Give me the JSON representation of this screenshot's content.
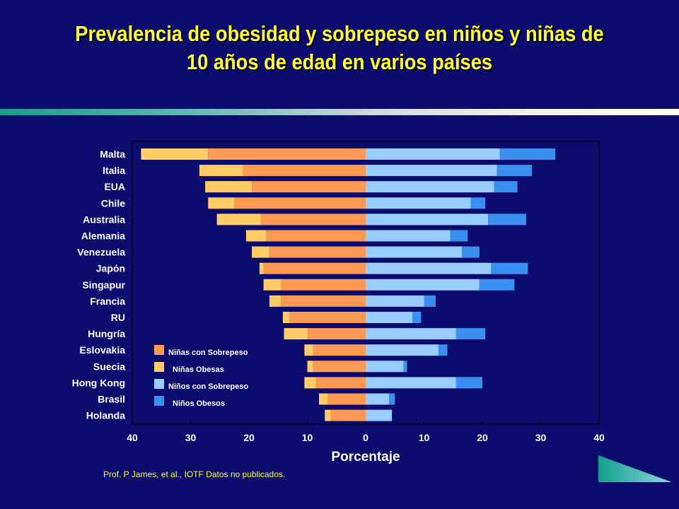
{
  "title_line1": "Prevalencia de obesidad y sobrepeso en niños y niñas de",
  "title_line2": "10 años de edad en varios países",
  "source": "Prof. P James, et al., IOTF Datos no publicados.",
  "colors": {
    "background": "#0c0c6e",
    "girls_overweight": "#ff9a55",
    "girls_obese": "#ffcc66",
    "boys_overweight": "#99ccff",
    "boys_obese": "#3b8ff0",
    "title": "#ffff33"
  },
  "chart_data": {
    "type": "bar",
    "orientation": "horizontal-diverging",
    "xlabel": "Porcentaje",
    "xlim": [
      -40,
      40
    ],
    "xticks": [
      "40",
      "30",
      "20",
      "10",
      "0",
      "10",
      "20",
      "30",
      "40"
    ],
    "categories": [
      "Malta",
      "Italia",
      "EUA",
      "Chile",
      "Australia",
      "Alemania",
      "Venezuela",
      "Japón",
      "Singapur",
      "Francia",
      "RU",
      "Hungría",
      "Eslovakia",
      "Suecia",
      "Hong Kong",
      "Brasil",
      "Holanda"
    ],
    "series": [
      {
        "name": "Niñas con Sobrepeso",
        "side": "left",
        "values": [
          27,
          21,
          19.5,
          22.5,
          18,
          17,
          16.5,
          17.5,
          14.5,
          14.5,
          13,
          10,
          9,
          9,
          8.5,
          6.5,
          6
        ]
      },
      {
        "name": "Niñas Obesas",
        "side": "left",
        "values": [
          11.5,
          7.5,
          8,
          4.5,
          7.5,
          3.5,
          3,
          0.7,
          3,
          2,
          1.2,
          4,
          1.5,
          1,
          2,
          1.5,
          1
        ]
      },
      {
        "name": "Niños con Sobrepeso",
        "side": "right",
        "values": [
          23,
          22.5,
          22,
          18,
          21,
          14.5,
          16.5,
          21.5,
          19.5,
          10,
          8,
          15.5,
          12.5,
          6.5,
          15.5,
          4,
          4.5
        ]
      },
      {
        "name": "Niños Obesos",
        "side": "right",
        "values": [
          9.5,
          6,
          4,
          2.5,
          6.5,
          3,
          3,
          6.3,
          6,
          2,
          1.5,
          5,
          1.5,
          0.6,
          4.5,
          1,
          0
        ]
      }
    ],
    "legend_position": "lower-left inside plot",
    "grid": false
  }
}
